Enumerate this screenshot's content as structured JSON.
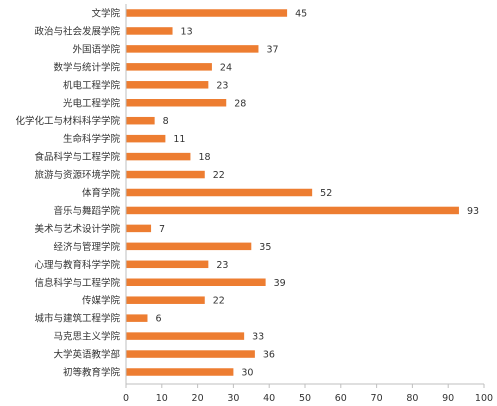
{
  "chart_data": {
    "type": "bar",
    "orientation": "horizontal",
    "title": "",
    "xlabel": "",
    "ylabel": "",
    "categories": [
      "文学院",
      "政治与社会发展学院",
      "外国语学院",
      "数学与统计学院",
      "机电工程学院",
      "光电工程学院",
      "化学化工与材料科学学院",
      "生命科学学院",
      "食品科学与工程学院",
      "旅游与资源环境学院",
      "体育学院",
      "音乐与舞蹈学院",
      "美术与艺术设计学院",
      "经济与管理学院",
      "心理与教育科学学院",
      "信息科学与工程学院",
      "传媒学院",
      "城市与建筑工程学院",
      "马克思主义学院",
      "大学英语教学部",
      "初等教育学院"
    ],
    "values": [
      45,
      13,
      37,
      24,
      23,
      28,
      8,
      11,
      18,
      22,
      52,
      93,
      7,
      35,
      23,
      39,
      22,
      6,
      33,
      36,
      30
    ],
    "xlim": [
      0,
      100
    ],
    "x_ticks": [
      0,
      10,
      20,
      30,
      40,
      50,
      60,
      70,
      80,
      90,
      100
    ],
    "data_labels": true,
    "grid": false,
    "bar_color": "#ED7D31",
    "axis_color": "#BFBFBF"
  }
}
